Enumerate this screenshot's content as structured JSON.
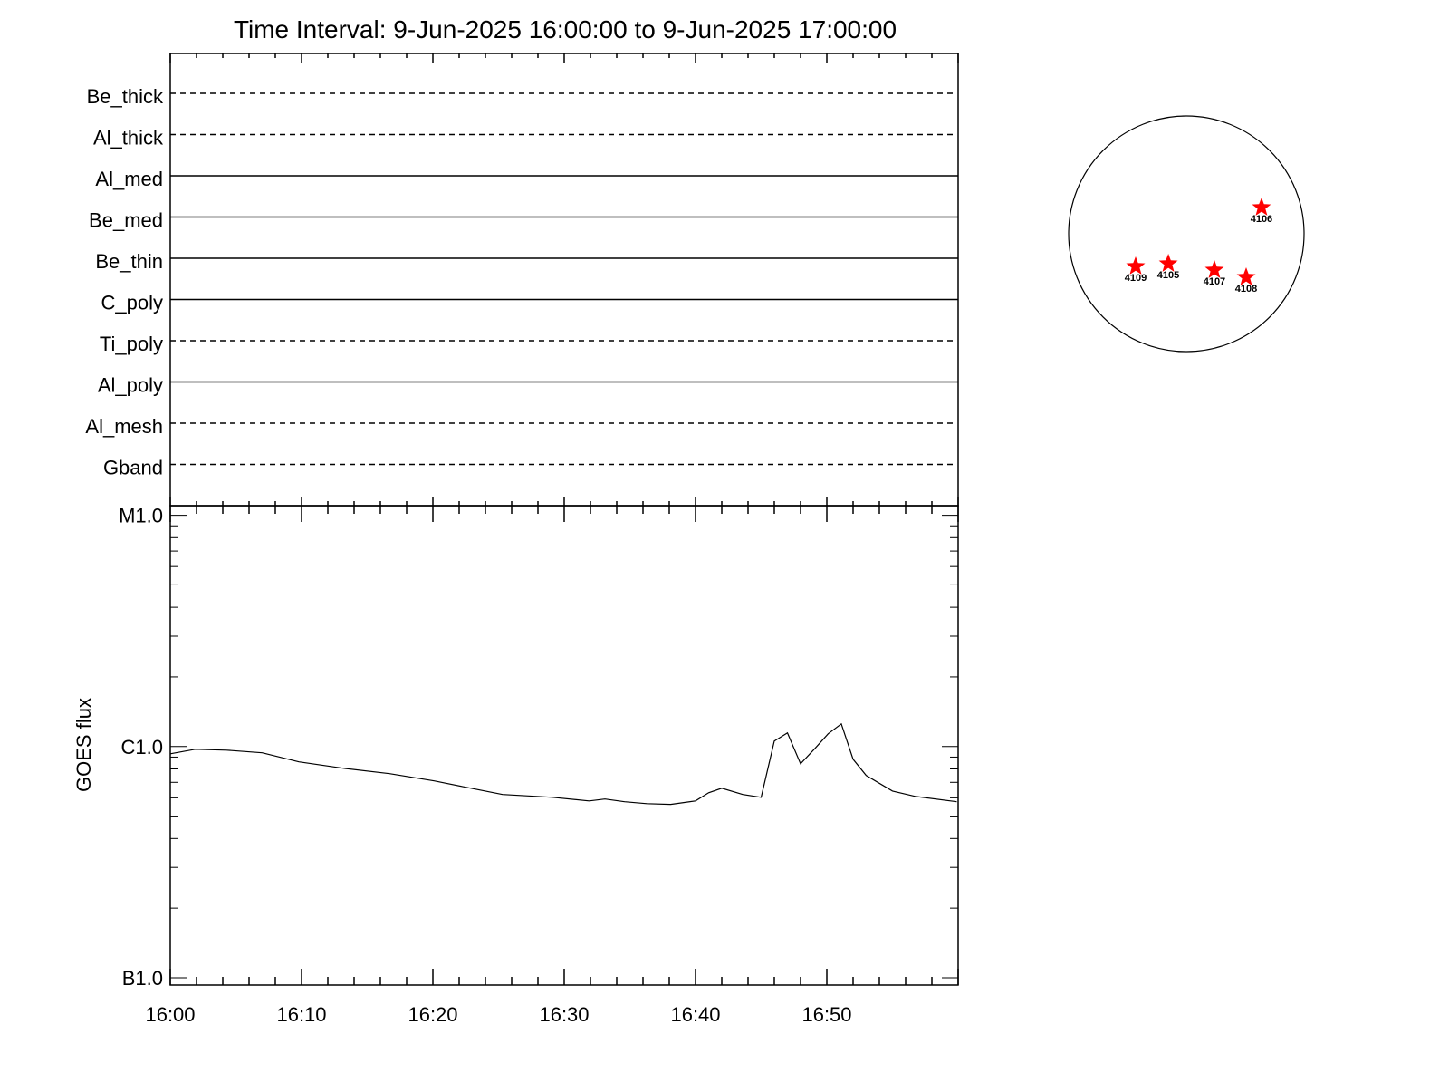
{
  "title": "Time Interval:  9-Jun-2025 16:00:00 to  9-Jun-2025 17:00:00",
  "chart_data": [
    {
      "type": "line",
      "panel": "filter-status",
      "filters": [
        {
          "name": "Be_thick",
          "style": "dashed"
        },
        {
          "name": "Al_thick",
          "style": "dashed"
        },
        {
          "name": "Al_med",
          "style": "solid"
        },
        {
          "name": "Be_med",
          "style": "solid"
        },
        {
          "name": "Be_thin",
          "style": "solid"
        },
        {
          "name": "C_poly",
          "style": "solid"
        },
        {
          "name": "Ti_poly",
          "style": "dashed"
        },
        {
          "name": "Al_poly",
          "style": "solid"
        },
        {
          "name": "Al_mesh",
          "style": "dashed"
        },
        {
          "name": "Gband",
          "style": "dashed"
        }
      ]
    },
    {
      "type": "line",
      "panel": "goes",
      "ylabel": "GOES flux",
      "yscale": "log",
      "ylim": [
        9.3e-08,
        1.1e-05
      ],
      "yticks": [
        {
          "value": 1e-05,
          "label": "M1.0"
        },
        {
          "value": 1e-06,
          "label": "C1.0"
        },
        {
          "value": 1e-07,
          "label": "B1.0"
        }
      ],
      "xlim": [
        "16:00",
        "17:00"
      ],
      "xticks": [
        "16:00",
        "16:10",
        "16:20",
        "16:30",
        "16:40",
        "16:50"
      ],
      "grid": false,
      "x": [
        "16:00:00",
        "16:01:54",
        "16:04:18",
        "16:07:00",
        "16:09:48",
        "16:13:12",
        "16:16:42",
        "16:20:06",
        "16:22:12",
        "16:25:18",
        "16:29:06",
        "16:31:54",
        "16:33:06",
        "16:34:36",
        "16:36:18",
        "16:38:06",
        "16:40:00",
        "16:41:00",
        "16:42:00",
        "16:43:36",
        "16:45:00",
        "16:46:00",
        "16:47:00",
        "16:48:00",
        "16:49:06",
        "16:50:06",
        "16:51:06",
        "16:52:00",
        "16:53:00",
        "16:55:00",
        "16:56:42",
        "16:59:54"
      ],
      "y": [
        9.3e-07,
        9.73e-07,
        9.64e-07,
        9.39e-07,
        8.58e-07,
        8.05e-07,
        7.63e-07,
        7.1e-07,
        6.72e-07,
        6.2e-07,
        6.03e-07,
        5.82e-07,
        5.93e-07,
        5.77e-07,
        5.66e-07,
        5.62e-07,
        5.82e-07,
        6.31e-07,
        6.6e-07,
        6.2e-07,
        6.03e-07,
        1.056e-06,
        1.145e-06,
        8.42e-07,
        9.82e-07,
        1.135e-06,
        1.253e-06,
        8.81e-07,
        7.49e-07,
        6.42e-07,
        6.09e-07,
        5.77e-07
      ]
    },
    {
      "type": "scatter",
      "panel": "solar-disk",
      "marker_color": "#ff0000",
      "points": [
        {
          "label": "4106",
          "x": 603,
          "y": 211
        },
        {
          "label": "4109",
          "x": -407,
          "y": -262
        },
        {
          "label": "4105",
          "x": -145,
          "y": -240
        },
        {
          "label": "4107",
          "x": 225,
          "y": -291
        },
        {
          "label": "4108",
          "x": 480,
          "y": -349
        }
      ]
    }
  ]
}
